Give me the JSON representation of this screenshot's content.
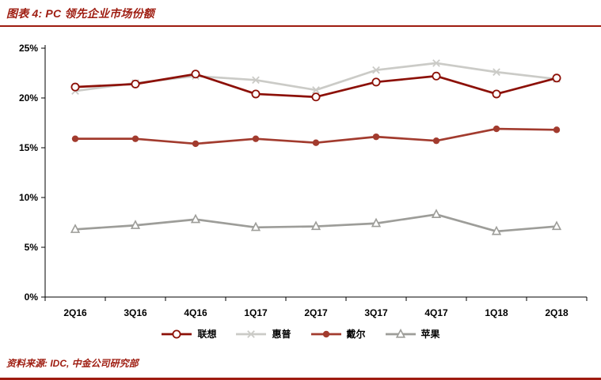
{
  "header": {
    "title": "图表 4: PC 领先企业市场份额"
  },
  "footer": {
    "source": "资料来源:  IDC, 中金公司研究部"
  },
  "colors": {
    "accent": "#9E1C10",
    "axis": "#000000",
    "background": "#FFFFFF"
  },
  "chart_data": {
    "type": "line",
    "title": "PC 领先企业市场份额",
    "xlabel": "",
    "ylabel": "",
    "categories": [
      "2Q16",
      "3Q16",
      "4Q16",
      "1Q17",
      "2Q17",
      "3Q17",
      "4Q17",
      "1Q18",
      "2Q18"
    ],
    "series": [
      {
        "name": "联想",
        "color": "#8C1007",
        "marker": "circle-open",
        "values": [
          21.1,
          21.4,
          22.4,
          20.4,
          20.1,
          21.6,
          22.2,
          20.4,
          22.0
        ]
      },
      {
        "name": "惠普",
        "color": "#CBCBC7",
        "marker": "x",
        "values": [
          20.7,
          21.5,
          22.2,
          21.8,
          20.8,
          22.8,
          23.5,
          22.6,
          21.9
        ]
      },
      {
        "name": "戴尔",
        "color": "#A23B2E",
        "marker": "circle-filled",
        "values": [
          15.9,
          15.9,
          15.4,
          15.9,
          15.5,
          16.1,
          15.7,
          16.9,
          16.8
        ]
      },
      {
        "name": "苹果",
        "color": "#9D9D99",
        "marker": "triangle-open",
        "values": [
          6.8,
          7.2,
          7.8,
          7.0,
          7.1,
          7.4,
          8.3,
          6.6,
          7.1
        ]
      }
    ],
    "ylim": [
      0,
      25
    ],
    "ytick_step": 5,
    "ytick_labels": [
      "0%",
      "5%",
      "10%",
      "15%",
      "20%",
      "25%"
    ],
    "grid": false,
    "legend_position": "bottom",
    "draw_order": [
      1,
      3,
      2,
      0
    ]
  }
}
